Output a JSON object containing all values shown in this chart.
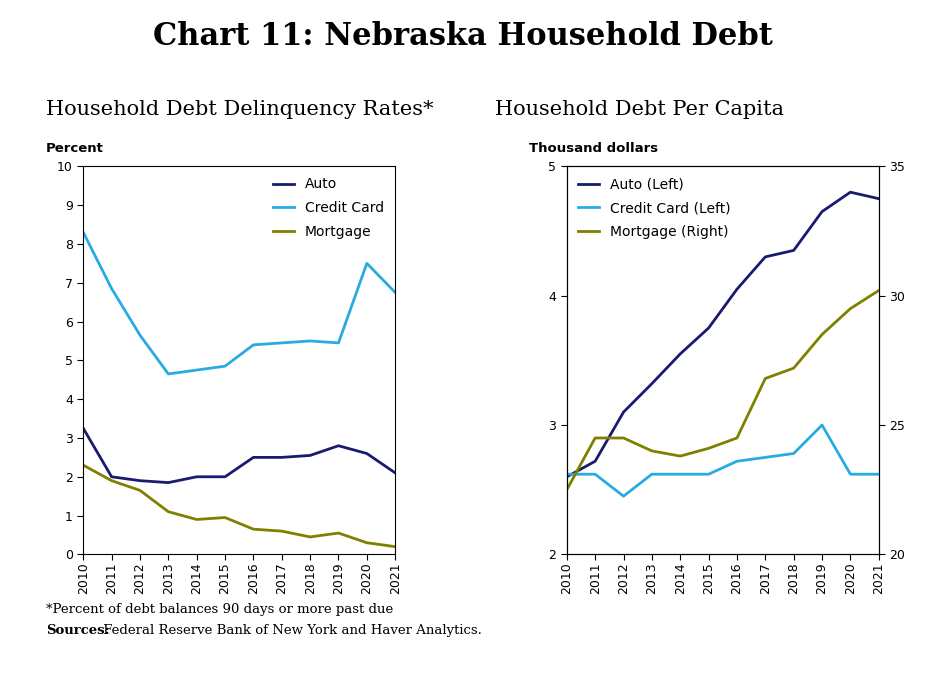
{
  "title": "Chart 11: Nebraska Household Debt",
  "title_fontsize": 22,
  "left_subtitle": "Household Debt Delinquency Rates*",
  "right_subtitle": "Household Debt Per Capita",
  "subtitle_fontsize": 15,
  "years": [
    2010,
    2011,
    2012,
    2013,
    2014,
    2015,
    2016,
    2017,
    2018,
    2019,
    2020,
    2021
  ],
  "left": {
    "auto": [
      3.25,
      2.0,
      1.9,
      1.85,
      2.0,
      2.0,
      2.5,
      2.5,
      2.55,
      2.8,
      2.6,
      2.1
    ],
    "credit_card": [
      8.3,
      6.85,
      5.65,
      4.65,
      4.75,
      4.85,
      5.4,
      5.45,
      5.5,
      5.45,
      7.5,
      6.75
    ],
    "mortgage": [
      2.3,
      1.9,
      1.65,
      1.1,
      0.9,
      0.95,
      0.65,
      0.6,
      0.45,
      0.55,
      0.3,
      0.2
    ],
    "ylabel": "Percent",
    "ylim": [
      0,
      10
    ],
    "yticks": [
      0,
      1,
      2,
      3,
      4,
      5,
      6,
      7,
      8,
      9,
      10
    ],
    "auto_color": "#1a1a6e",
    "credit_card_color": "#29abe2",
    "mortgage_color": "#808000",
    "auto_label": "Auto",
    "credit_card_label": "Credit Card",
    "mortgage_label": "Mortgage"
  },
  "right": {
    "auto": [
      2.6,
      2.72,
      3.1,
      3.32,
      3.55,
      3.75,
      4.05,
      4.3,
      4.35,
      4.65,
      4.8,
      4.75
    ],
    "credit_card": [
      2.62,
      2.62,
      2.45,
      2.62,
      2.62,
      2.62,
      2.72,
      2.75,
      2.78,
      3.0,
      2.62,
      2.62
    ],
    "mortgage": [
      22.5,
      24.5,
      24.5,
      24.0,
      23.8,
      24.1,
      24.5,
      26.8,
      27.2,
      28.5,
      29.5,
      30.2
    ],
    "ylabel_left": "Thousand dollars",
    "ylim_left": [
      2,
      5
    ],
    "ylim_right": [
      20,
      35
    ],
    "yticks_left": [
      2,
      3,
      4,
      5
    ],
    "yticks_right": [
      20,
      25,
      30,
      35
    ],
    "auto_color": "#1a1a6e",
    "credit_card_color": "#29abe2",
    "mortgage_color": "#808000",
    "auto_label": "Auto (Left)",
    "credit_card_label": "Credit Card (Left)",
    "mortgage_label": "Mortgage (Right)"
  },
  "footnote1": "*Percent of debt balances 90 days or more past due",
  "footnote2": "Sources: Federal Reserve Bank of New York and Haver Analytics.",
  "footnote_fontsize": 9.5,
  "background_color": "#ffffff"
}
